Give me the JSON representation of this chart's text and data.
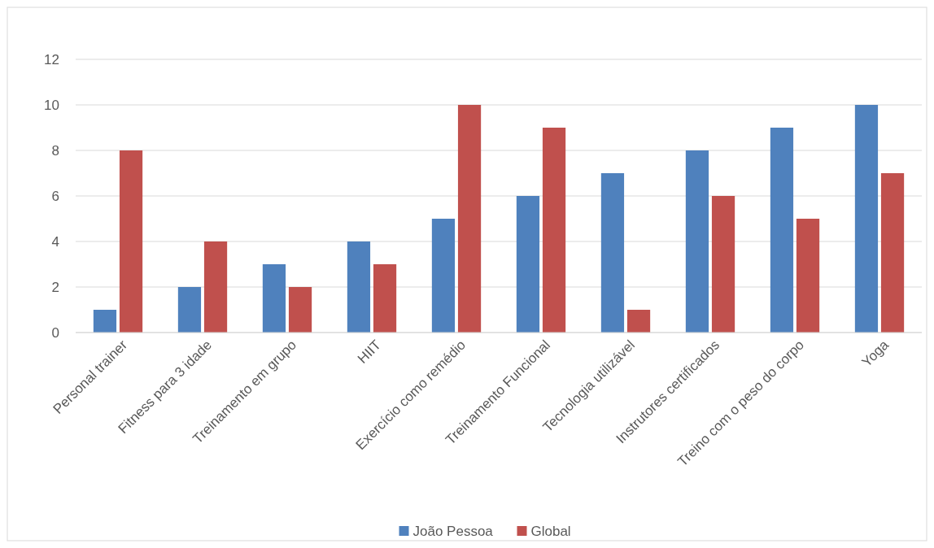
{
  "chart_data": {
    "type": "bar",
    "categories": [
      "Personal trainer",
      "Fitness para 3 idade",
      "Treinamento em grupo",
      "HIIT",
      "Exercício como remédio",
      "Treinamento Funcional",
      "Tecnologia utilizável",
      "Instrutores certificados",
      "Treino com o peso do corpo",
      "Yoga"
    ],
    "series": [
      {
        "name": "João Pessoa",
        "color": "#4f81bd",
        "values": [
          1,
          2,
          3,
          4,
          5,
          6,
          7,
          8,
          9,
          10
        ]
      },
      {
        "name": "Global",
        "color": "#c0504d",
        "values": [
          8,
          4,
          2,
          3,
          10,
          9,
          1,
          6,
          5,
          7
        ]
      }
    ],
    "ylim": [
      0,
      12
    ],
    "yticks": [
      0,
      2,
      4,
      6,
      8,
      10,
      12
    ],
    "grid": "y",
    "legend": "bottom"
  }
}
